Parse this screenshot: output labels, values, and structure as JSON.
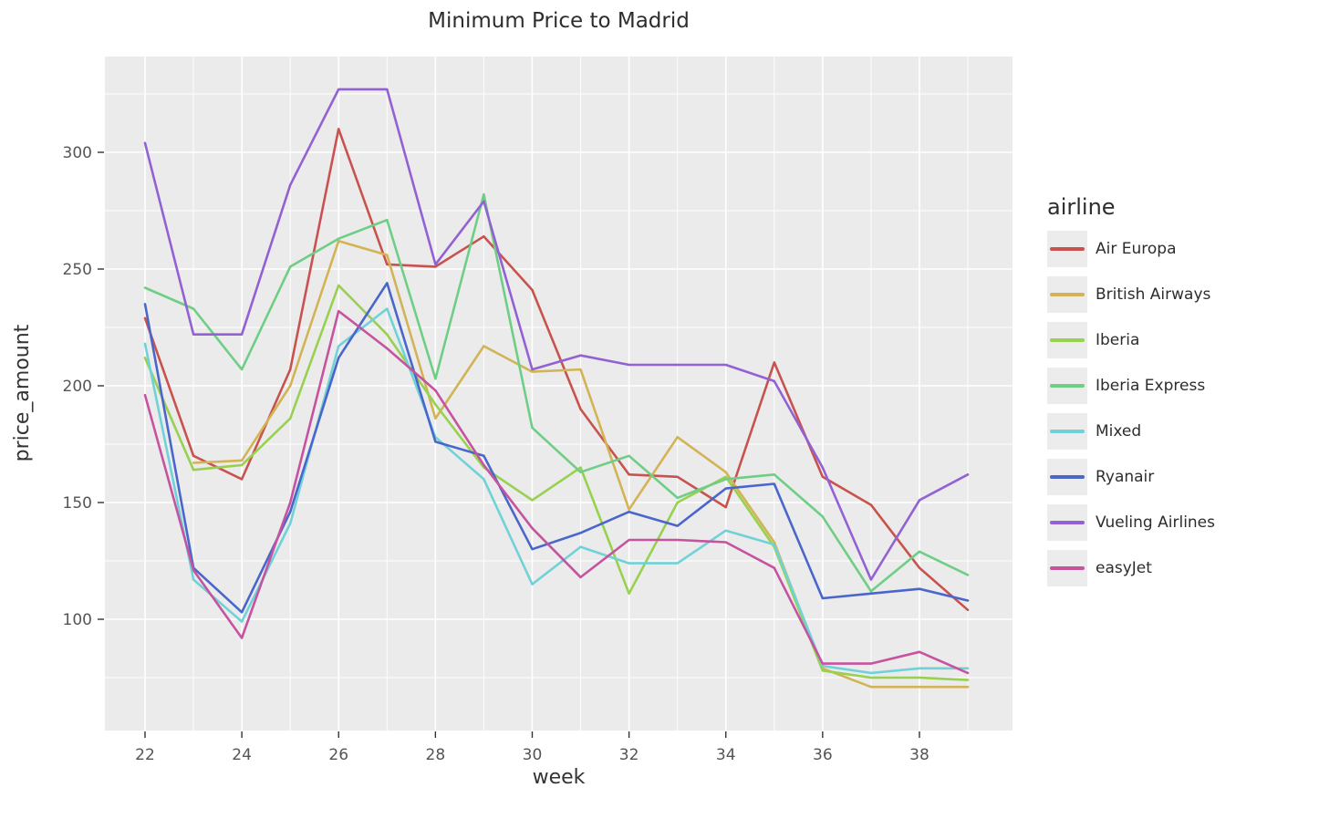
{
  "title": "Minimum Price to Madrid",
  "x_axis": {
    "label": "week",
    "ticks": [
      22,
      24,
      26,
      28,
      30,
      32,
      34,
      36,
      38
    ],
    "minor_ticks": [
      23,
      25,
      27,
      29,
      31,
      33,
      35,
      37,
      39
    ],
    "range": [
      21.2,
      39.9
    ]
  },
  "y_axis": {
    "label": "price_amount",
    "ticks": [
      100,
      150,
      200,
      250,
      300
    ],
    "minor_ticks": [
      75,
      125,
      175,
      225,
      275,
      325
    ],
    "range": [
      57,
      340
    ]
  },
  "legend": {
    "title": "airline",
    "position": "right"
  },
  "colors": {
    "panel_bg": "#ebebeb",
    "grid": "#ffffff",
    "tick_mark": "#333333",
    "tick_label": "#555555",
    "text": "#2d2d2d"
  },
  "chart_data": {
    "type": "line",
    "title": "Minimum Price to Madrid",
    "xlabel": "week",
    "ylabel": "price_amount",
    "grid": true,
    "legend_position": "right",
    "x": [
      22,
      23,
      24,
      25,
      26,
      27,
      28,
      29,
      30,
      31,
      32,
      33,
      34,
      35,
      36,
      37,
      38,
      39
    ],
    "xlim": [
      21.2,
      39.9
    ],
    "ylim": [
      57,
      340
    ],
    "series": [
      {
        "name": "Air Europa",
        "color": "#c8534e",
        "values": [
          229,
          170,
          160,
          207,
          310,
          252,
          251,
          264,
          241,
          190,
          162,
          161,
          148,
          210,
          161,
          149,
          122,
          104
        ]
      },
      {
        "name": "British Airways",
        "color": "#d2b356",
        "values": [
          null,
          167,
          168,
          200,
          262,
          256,
          186,
          217,
          206,
          207,
          147,
          178,
          163,
          133,
          79,
          71,
          71,
          71
        ]
      },
      {
        "name": "Iberia",
        "color": "#97d14f",
        "values": [
          212,
          164,
          166,
          186,
          243,
          222,
          192,
          165,
          151,
          165,
          111,
          150,
          161,
          131,
          78,
          75,
          75,
          74
        ]
      },
      {
        "name": "Iberia Express",
        "color": "#6fce85",
        "values": [
          242,
          233,
          207,
          251,
          263,
          271,
          203,
          282,
          182,
          163,
          170,
          152,
          160,
          162,
          144,
          112,
          129,
          119
        ]
      },
      {
        "name": "Mixed",
        "color": "#70d2d8",
        "values": [
          218,
          117,
          99,
          141,
          217,
          233,
          178,
          160,
          115,
          131,
          124,
          124,
          138,
          132,
          80,
          77,
          79,
          79
        ]
      },
      {
        "name": "Ryanair",
        "color": "#4a66cb",
        "values": [
          235,
          122,
          103,
          146,
          212,
          244,
          176,
          170,
          130,
          137,
          146,
          140,
          156,
          158,
          109,
          111,
          113,
          108
        ]
      },
      {
        "name": "Vueling Airlines",
        "color": "#9261d3",
        "values": [
          304,
          222,
          222,
          286,
          327,
          327,
          252,
          279,
          207,
          213,
          209,
          209,
          209,
          202,
          165,
          117,
          151,
          162
        ]
      },
      {
        "name": "easyJet",
        "color": "#c6539f",
        "values": [
          196,
          121,
          92,
          150,
          232,
          216,
          198,
          166,
          139,
          118,
          134,
          134,
          133,
          122,
          81,
          81,
          86,
          77
        ]
      }
    ]
  }
}
